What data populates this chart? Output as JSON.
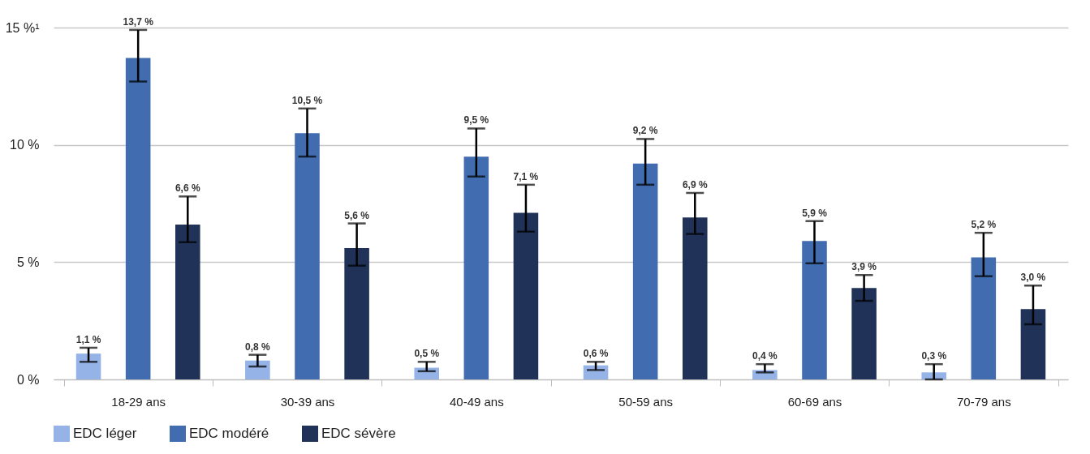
{
  "chart_data": {
    "type": "bar",
    "categories": [
      "18-29 ans",
      "30-39 ans",
      "40-49 ans",
      "50-59 ans",
      "60-69 ans",
      "70-79 ans"
    ],
    "series": [
      {
        "name": "EDC léger",
        "color": "#95b3e6",
        "values": [
          1.1,
          0.8,
          0.5,
          0.6,
          0.4,
          0.3
        ],
        "value_labels": [
          "1,1 %",
          "0,8 %",
          "0,5 %",
          "0,6 %",
          "0,4 %",
          "0,3 %"
        ],
        "errors": [
          [
            0.75,
            1.35
          ],
          [
            0.55,
            1.05
          ],
          [
            0.35,
            0.75
          ],
          [
            0.4,
            0.75
          ],
          [
            0.3,
            0.65
          ],
          [
            0,
            0.65
          ]
        ]
      },
      {
        "name": "EDC modéré",
        "color": "#416cb0",
        "values": [
          13.7,
          10.5,
          9.5,
          9.2,
          5.9,
          5.2
        ],
        "value_labels": [
          "13,7 %",
          "10,5 %",
          "9,5 %",
          "9,2 %",
          "5,9 %",
          "5,2 %"
        ],
        "errors": [
          [
            12.7,
            14.9
          ],
          [
            9.5,
            11.55
          ],
          [
            8.65,
            10.7
          ],
          [
            8.3,
            10.25
          ],
          [
            4.95,
            6.75
          ],
          [
            4.4,
            6.25
          ]
        ]
      },
      {
        "name": "EDC sévère",
        "color": "#203257",
        "values": [
          6.6,
          5.6,
          7.1,
          6.9,
          3.9,
          3.0
        ],
        "value_labels": [
          "6,6 %",
          "5,6 %",
          "7,1 %",
          "6,9 %",
          "3,9 %",
          "3,0 %"
        ],
        "errors": [
          [
            5.85,
            7.8
          ],
          [
            4.85,
            6.65
          ],
          [
            6.3,
            8.3
          ],
          [
            6.2,
            7.95
          ],
          [
            3.35,
            4.45
          ],
          [
            2.35,
            4.0
          ]
        ]
      }
    ],
    "ylim": [
      0,
      15
    ],
    "yticks": [
      {
        "value": 0,
        "label": "0 %"
      },
      {
        "value": 5,
        "label": "5 %"
      },
      {
        "value": 10,
        "label": "10 %"
      },
      {
        "value": 15,
        "label": "15 %¹"
      }
    ],
    "grid": "y",
    "legend": "bottom"
  }
}
